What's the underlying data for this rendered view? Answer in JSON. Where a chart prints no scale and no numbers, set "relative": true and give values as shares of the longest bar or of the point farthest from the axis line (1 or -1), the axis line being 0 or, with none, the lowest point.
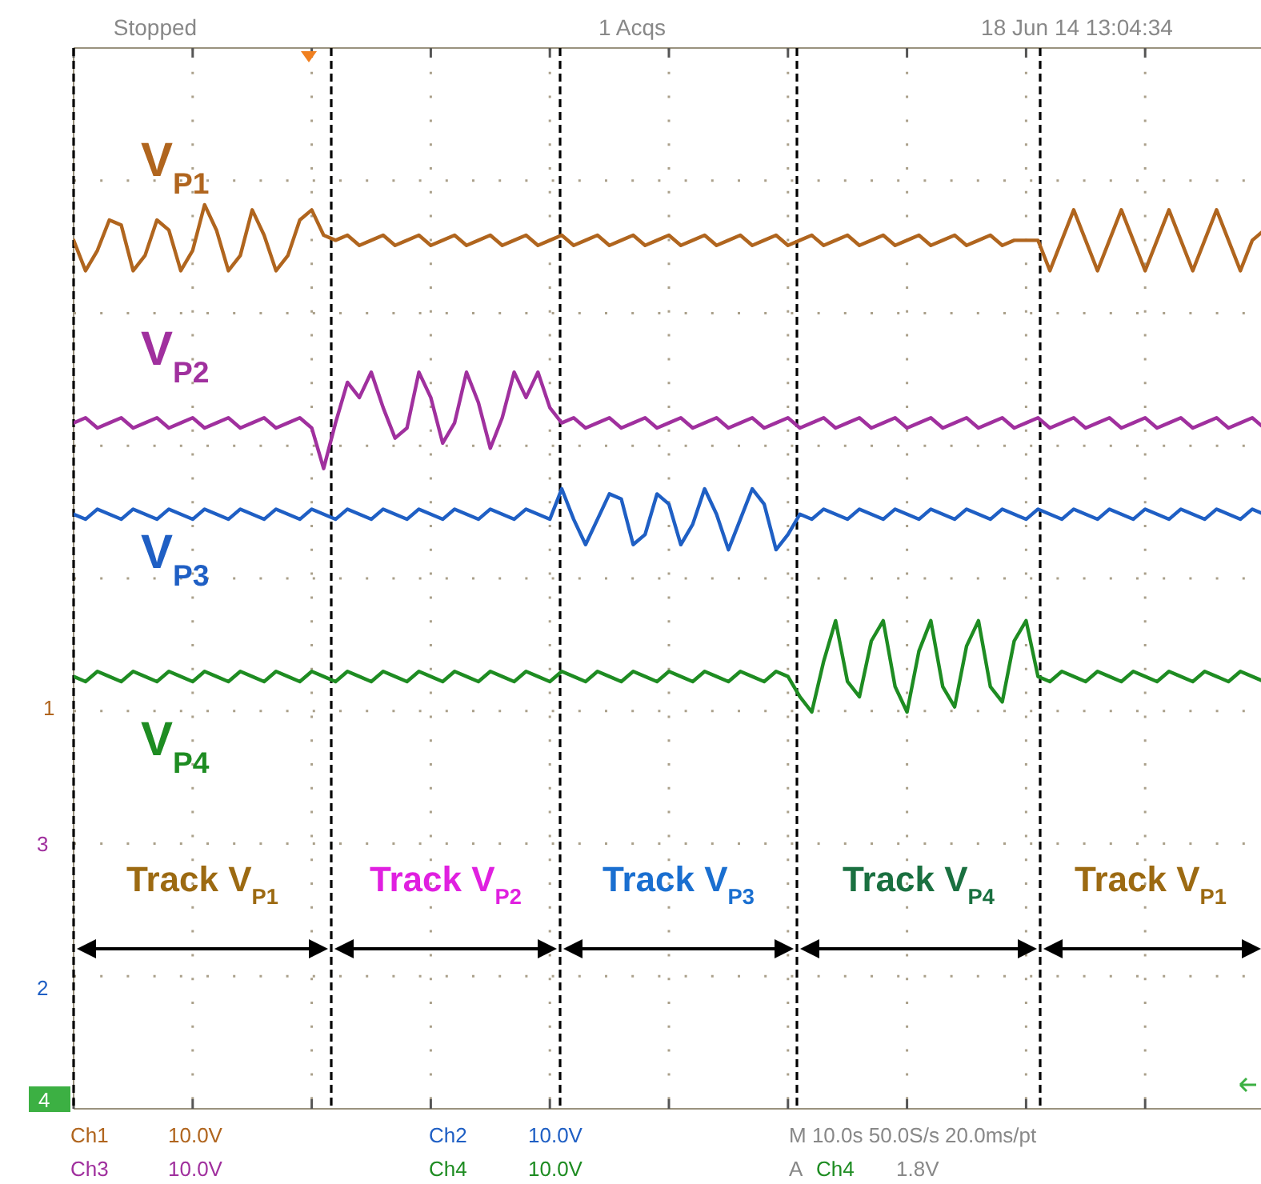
{
  "chart_data": {
    "type": "line",
    "relative": true,
    "categories": [
      null,
      null,
      null,
      null,
      null,
      null,
      null,
      null,
      null,
      null,
      null,
      null,
      null,
      null,
      null,
      null,
      null,
      null,
      null,
      null,
      null,
      null,
      null,
      null,
      null,
      null,
      null,
      null,
      null,
      null,
      null,
      null,
      null,
      null,
      null,
      null,
      null,
      null,
      null,
      null,
      null,
      null,
      null,
      null,
      null,
      null,
      null,
      null,
      null,
      null,
      null,
      null,
      null,
      null,
      null,
      null,
      null,
      null,
      null,
      null,
      null,
      null,
      null,
      null,
      null,
      null,
      null,
      null,
      null,
      null,
      null,
      null,
      null,
      null,
      null,
      null,
      null,
      null,
      null,
      null,
      null,
      null,
      null,
      null,
      null,
      null,
      null,
      null,
      null,
      null,
      null,
      null,
      null,
      null,
      null,
      null,
      null,
      null,
      null,
      null,
      null
    ],
    "grid": true,
    "line_style": "solid",
    "series": [
      {
        "name": "V$_{P1}$",
        "color": "#b0651e",
        "values": [
          0.93,
          0.87,
          0.91,
          0.97,
          0.96,
          0.87,
          0.9,
          0.97,
          0.95,
          0.87,
          0.91,
          1,
          0.95,
          0.87,
          0.9,
          0.99,
          0.94,
          0.87,
          0.9,
          0.97,
          0.99,
          0.94,
          0.93,
          0.94,
          0.92,
          0.93,
          0.94,
          0.92,
          0.93,
          0.94,
          0.92,
          0.93,
          0.94,
          0.92,
          0.93,
          0.94,
          0.92,
          0.93,
          0.94,
          0.92,
          0.93,
          0.94,
          0.92,
          0.93,
          0.94,
          0.92,
          0.93,
          0.94,
          0.92,
          0.93,
          0.94,
          0.92,
          0.93,
          0.94,
          0.92,
          0.93,
          0.94,
          0.92,
          0.93,
          0.94,
          0.92,
          0.93,
          0.94,
          0.92,
          0.93,
          0.94,
          0.92,
          0.93,
          0.94,
          0.92,
          0.93,
          0.94,
          0.92,
          0.93,
          0.94,
          0.92,
          0.93,
          0.94,
          0.92,
          0.93,
          0.93,
          0.93,
          0.87,
          0.93,
          0.99,
          0.93,
          0.87,
          0.93,
          0.99,
          0.93,
          0.87,
          0.93,
          0.99,
          0.93,
          0.87,
          0.93,
          0.99,
          0.93,
          0.87,
          0.93,
          0.95
        ]
      },
      {
        "name": "V$_{P2}$",
        "color": "#a0309e",
        "values": [
          0.57,
          0.58,
          0.56,
          0.57,
          0.58,
          0.56,
          0.57,
          0.58,
          0.56,
          0.57,
          0.58,
          0.56,
          0.57,
          0.58,
          0.56,
          0.57,
          0.58,
          0.56,
          0.57,
          0.58,
          0.56,
          0.48,
          0.57,
          0.65,
          0.62,
          0.67,
          0.6,
          0.54,
          0.56,
          0.67,
          0.62,
          0.53,
          0.57,
          0.67,
          0.61,
          0.52,
          0.58,
          0.67,
          0.62,
          0.67,
          0.6,
          0.57,
          0.58,
          0.56,
          0.57,
          0.58,
          0.56,
          0.57,
          0.58,
          0.56,
          0.57,
          0.58,
          0.56,
          0.57,
          0.58,
          0.56,
          0.57,
          0.58,
          0.56,
          0.57,
          0.58,
          0.56,
          0.57,
          0.58,
          0.56,
          0.57,
          0.58,
          0.56,
          0.57,
          0.58,
          0.56,
          0.57,
          0.58,
          0.56,
          0.57,
          0.58,
          0.56,
          0.57,
          0.58,
          0.56,
          0.57,
          0.58,
          0.56,
          0.57,
          0.58,
          0.56,
          0.57,
          0.58,
          0.56,
          0.57,
          0.58,
          0.56,
          0.57,
          0.58,
          0.56,
          0.57,
          0.58,
          0.56,
          0.57,
          0.58,
          0.56
        ]
      },
      {
        "name": "V$_{P3}$",
        "color": "#1f5fc4",
        "values": [
          0.39,
          0.38,
          0.4,
          0.39,
          0.38,
          0.4,
          0.39,
          0.38,
          0.4,
          0.39,
          0.38,
          0.4,
          0.39,
          0.38,
          0.4,
          0.39,
          0.38,
          0.4,
          0.39,
          0.38,
          0.4,
          0.39,
          0.38,
          0.4,
          0.39,
          0.38,
          0.4,
          0.39,
          0.38,
          0.4,
          0.39,
          0.38,
          0.4,
          0.39,
          0.38,
          0.4,
          0.39,
          0.38,
          0.4,
          0.39,
          0.38,
          0.44,
          0.38,
          0.33,
          0.38,
          0.43,
          0.42,
          0.33,
          0.35,
          0.43,
          0.41,
          0.33,
          0.37,
          0.44,
          0.39,
          0.32,
          0.38,
          0.44,
          0.41,
          0.32,
          0.35,
          0.39,
          0.38,
          0.4,
          0.39,
          0.38,
          0.4,
          0.39,
          0.38,
          0.4,
          0.39,
          0.38,
          0.4,
          0.39,
          0.38,
          0.4,
          0.39,
          0.38,
          0.4,
          0.39,
          0.38,
          0.4,
          0.39,
          0.38,
          0.4,
          0.39,
          0.38,
          0.4,
          0.39,
          0.38,
          0.4,
          0.39,
          0.38,
          0.4,
          0.39,
          0.38,
          0.4,
          0.39,
          0.38,
          0.4,
          0.39
        ]
      },
      {
        "name": "V$_{P4}$",
        "color": "#1e8c22",
        "values": [
          0.07,
          0.06,
          0.08,
          0.07,
          0.06,
          0.08,
          0.07,
          0.06,
          0.08,
          0.07,
          0.06,
          0.08,
          0.07,
          0.06,
          0.08,
          0.07,
          0.06,
          0.08,
          0.07,
          0.06,
          0.08,
          0.07,
          0.06,
          0.08,
          0.07,
          0.06,
          0.08,
          0.07,
          0.06,
          0.08,
          0.07,
          0.06,
          0.08,
          0.07,
          0.06,
          0.08,
          0.07,
          0.06,
          0.08,
          0.07,
          0.06,
          0.08,
          0.07,
          0.06,
          0.08,
          0.07,
          0.06,
          0.08,
          0.07,
          0.06,
          0.08,
          0.07,
          0.06,
          0.08,
          0.07,
          0.06,
          0.08,
          0.07,
          0.06,
          0.08,
          0.07,
          0.03,
          0,
          0.1,
          0.18,
          0.06,
          0.03,
          0.14,
          0.18,
          0.05,
          0,
          0.12,
          0.18,
          0.05,
          0.01,
          0.13,
          0.18,
          0.05,
          0.02,
          0.14,
          0.18,
          0.07,
          0.06,
          0.08,
          0.07,
          0.06,
          0.08,
          0.07,
          0.06,
          0.08,
          0.07,
          0.06,
          0.08,
          0.07,
          0.06,
          0.08,
          0.07,
          0.06,
          0.08,
          0.07,
          0.06
        ]
      }
    ],
    "annotations": [
      "Stopped",
      "1 Acqs",
      "18 Jun 14 13:04:34",
      "Ch1",
      "10.0V",
      "Ch3",
      "10.0V",
      "Ch2",
      "10.0V",
      "Ch4",
      "10.0V",
      "M 10.0s 50.0S/s 20.0ms/pt",
      "A",
      "Ch4",
      "1.8V",
      "1",
      "3",
      "2",
      "4",
      "Track V$_{P1}$",
      "Track V$_{P2}$",
      "Track V$_{P3}$",
      "Track V$_{P4}$",
      "Track V$_{P1}$"
    ]
  }
}
